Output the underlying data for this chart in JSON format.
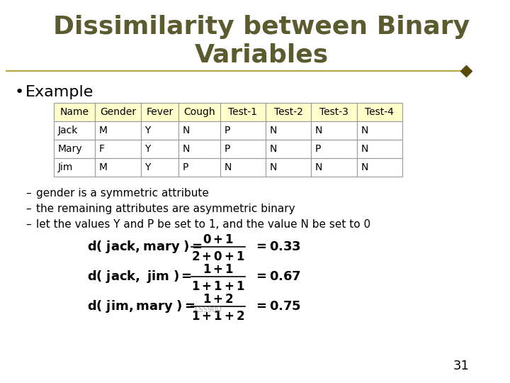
{
  "title_line1": "Dissimilarity between Binary",
  "title_line2": "Variables",
  "title_color": "#5B5B2F",
  "bg_color": "#FFFFFF",
  "slide_number": "31",
  "bullet": "Example",
  "table_headers": [
    "Name",
    "Gender",
    "Fever",
    "Cough",
    "Test-1",
    "Test-2",
    "Test-3",
    "Test-4"
  ],
  "table_data": [
    [
      "Jack",
      "M",
      "Y",
      "N",
      "P",
      "N",
      "N",
      "N"
    ],
    [
      "Mary",
      "F",
      "Y",
      "N",
      "P",
      "N",
      "P",
      "N"
    ],
    [
      "Jim",
      "M",
      "Y",
      "P",
      "N",
      "N",
      "N",
      "N"
    ]
  ],
  "header_bg": "#FFFFCC",
  "table_border_color": "#999999",
  "bullet_points": [
    "gender is a symmetric attribute",
    "the remaining attributes are asymmetric binary",
    "let the values Y and P be set to 1, and the value N be set to 0"
  ],
  "formula1_lhs": "d( jack, mary) = ",
  "formula1_num": "0 + 1",
  "formula1_den": "2 + 0 + 1",
  "formula1_res": "= 0.33",
  "formula2_lhs": "d( jack,  jim) = ",
  "formula2_num": "1 + 1",
  "formula2_den": "1 + 1 + 1",
  "formula2_res": "= 0.67",
  "formula3_lhs": "d( jim, mary) = ",
  "formula3_num": "1 + 2",
  "formula3_den": "1 + 1 + 2",
  "formula3_res": "= 0.75",
  "separator_color": "#B5A642",
  "text_color": "#000000",
  "formula_color": "#000000"
}
